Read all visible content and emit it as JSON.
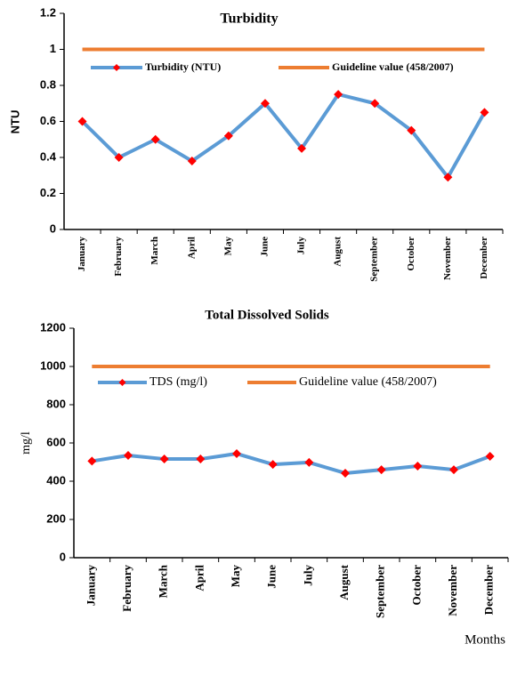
{
  "chart_data": [
    {
      "type": "line",
      "title": "Turbidity",
      "y_label": "NTU",
      "categories": [
        "January",
        "February",
        "March",
        "April",
        "May",
        "June",
        "July",
        "August",
        "September",
        "October",
        "November",
        "December"
      ],
      "series": [
        {
          "name": "Turbidity (NTU)",
          "color": "#5b9bd5",
          "marker_color": "#ff0000",
          "values": [
            0.6,
            0.4,
            0.5,
            0.38,
            0.52,
            0.7,
            0.45,
            0.75,
            0.7,
            0.55,
            0.29,
            0.65
          ]
        },
        {
          "name": "Guideline value (458/2007)",
          "color": "#ed7d31",
          "values": [
            1,
            1,
            1,
            1,
            1,
            1,
            1,
            1,
            1,
            1,
            1,
            1
          ]
        }
      ],
      "ylim": [
        0,
        1.2
      ],
      "yticks": [
        0,
        0.2,
        0.4,
        0.6,
        0.8,
        1,
        1.2
      ]
    },
    {
      "type": "line",
      "title": "Total Dissolved Solids",
      "y_label": "mg/l",
      "x_label": "Months",
      "categories": [
        "January",
        "February",
        "March",
        "April",
        "May",
        "June",
        "July",
        "August",
        "September",
        "October",
        "November",
        "December"
      ],
      "series": [
        {
          "name": "TDS (mg/l)",
          "color": "#5b9bd5",
          "marker_color": "#ff0000",
          "values": [
            505,
            535,
            516,
            516,
            544,
            488,
            498,
            442,
            460,
            479,
            460,
            530
          ]
        },
        {
          "name": "Guideline value (458/2007)",
          "color": "#ed7d31",
          "values": [
            1000,
            1000,
            1000,
            1000,
            1000,
            1000,
            1000,
            1000,
            1000,
            1000,
            1000,
            1000
          ]
        }
      ],
      "ylim": [
        0,
        1200
      ],
      "yticks": [
        0,
        200,
        400,
        600,
        800,
        1000,
        1200
      ]
    }
  ]
}
